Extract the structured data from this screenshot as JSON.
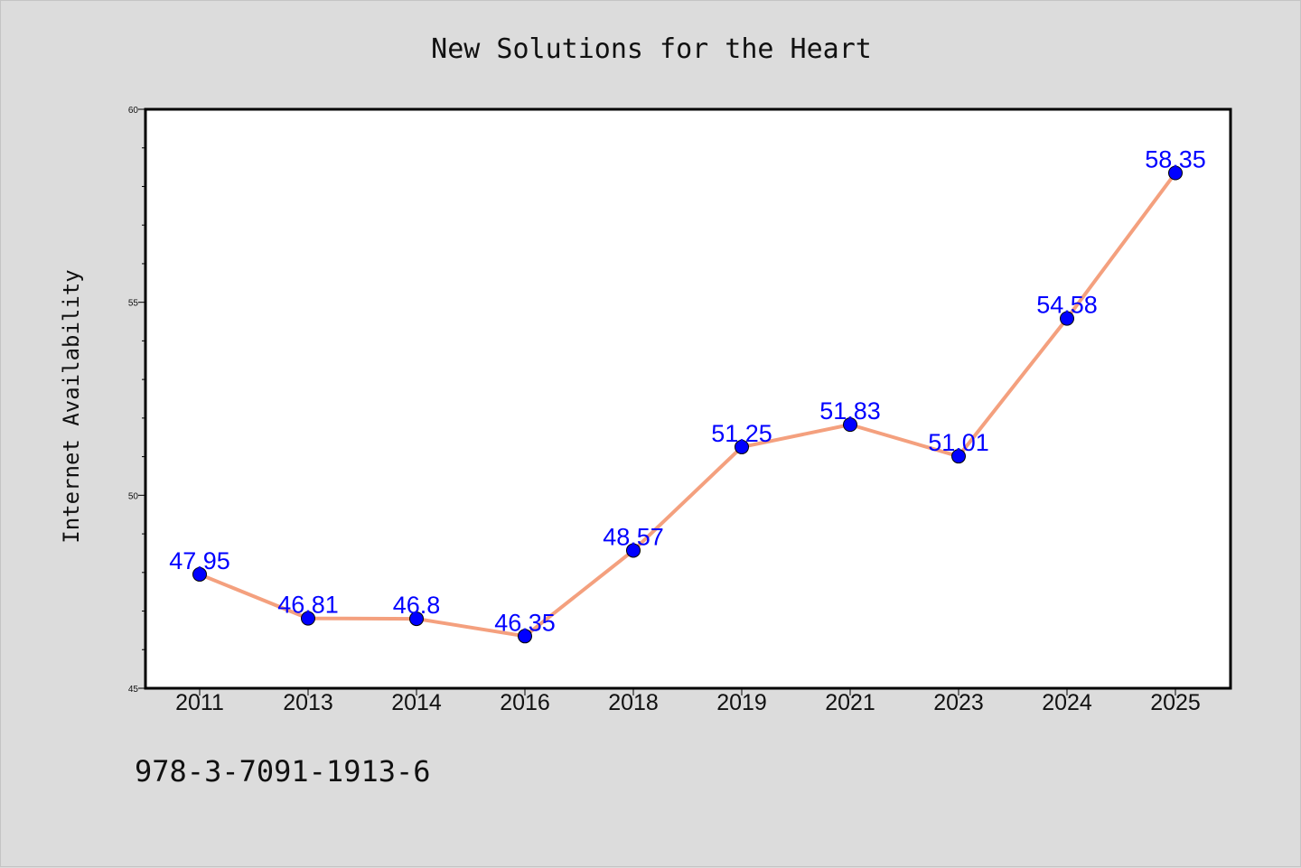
{
  "chart_data": {
    "type": "line",
    "title": "New Solutions for the Heart",
    "xlabel": "",
    "ylabel": "Internet Availability",
    "categories": [
      "2011",
      "2013",
      "2014",
      "2016",
      "2018",
      "2019",
      "2021",
      "2023",
      "2024",
      "2025"
    ],
    "values": [
      47.95,
      46.81,
      46.8,
      46.35,
      48.57,
      51.25,
      51.83,
      51.01,
      54.58,
      58.35
    ],
    "data_labels": [
      "47.95",
      "46.81",
      "46.8",
      "46.35",
      "48.57",
      "51.25",
      "51.83",
      "51.01",
      "54.58",
      "58.35"
    ],
    "ylim": [
      45,
      60
    ],
    "yticks": [
      "45",
      "50",
      "55",
      "60"
    ],
    "grid": false,
    "colors": {
      "line": "#f4a07e",
      "marker": "#0000ff",
      "labels": "#0000ff",
      "background": "#dcdcdc",
      "plot_background": "#ffffff"
    }
  },
  "footnote": "978-3-7091-1913-6"
}
